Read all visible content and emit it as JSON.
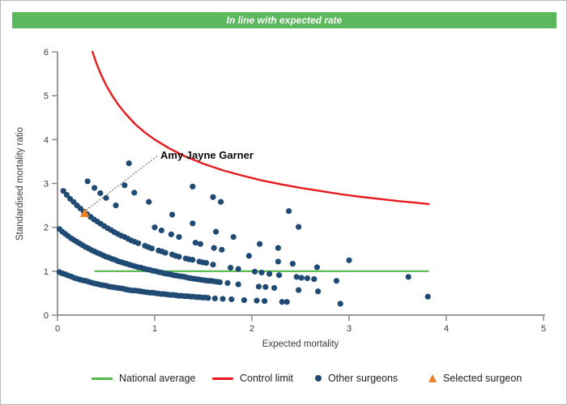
{
  "banner": {
    "text": "In line with expected rate",
    "bg_color": "#5CB85C",
    "text_color": "#FFFFFF"
  },
  "chart_data": {
    "type": "scatter",
    "title": "In line with expected rate",
    "xlabel": "Expected mortality",
    "ylabel": "Standardised mortality ratio",
    "xlim": [
      0,
      5
    ],
    "ylim": [
      0,
      6
    ],
    "x_ticks": [
      0,
      1,
      2,
      3,
      4,
      5
    ],
    "y_ticks": [
      0,
      1,
      2,
      3,
      4,
      5,
      6
    ],
    "grid": false,
    "legend_position": "bottom",
    "axis_color": "#8C8C8C",
    "national_average": {
      "label": "National average",
      "color": "#53B848",
      "y": 1.0,
      "x_start": 0.38,
      "x_end": 3.82
    },
    "control_limit": {
      "label": "Control limit",
      "color": "#E8191C",
      "points": [
        [
          0.36,
          6.0
        ],
        [
          0.4,
          5.74
        ],
        [
          0.45,
          5.47
        ],
        [
          0.5,
          5.24
        ],
        [
          0.56,
          5.01
        ],
        [
          0.63,
          4.78
        ],
        [
          0.7,
          4.59
        ],
        [
          0.8,
          4.35
        ],
        [
          0.9,
          4.16
        ],
        [
          1.0,
          4.0
        ],
        [
          1.15,
          3.8
        ],
        [
          1.3,
          3.63
        ],
        [
          1.5,
          3.45
        ],
        [
          1.7,
          3.3
        ],
        [
          1.9,
          3.18
        ],
        [
          2.1,
          3.07
        ],
        [
          2.3,
          2.98
        ],
        [
          2.5,
          2.9
        ],
        [
          2.7,
          2.83
        ],
        [
          2.9,
          2.76
        ],
        [
          3.1,
          2.7
        ],
        [
          3.3,
          2.65
        ],
        [
          3.5,
          2.6
        ],
        [
          3.65,
          2.57
        ],
        [
          3.82,
          2.53
        ]
      ]
    },
    "other_surgeons": {
      "label": "Other surgeons",
      "color": "#1F4A74",
      "marker": "circle",
      "bands": [
        {
          "deaths": 1,
          "points": [
            [
              0.02,
              0.98
            ],
            [
              0.05,
              0.95
            ],
            [
              0.08,
              0.93
            ],
            [
              0.11,
              0.9
            ],
            [
              0.14,
              0.88
            ],
            [
              0.17,
              0.85
            ],
            [
              0.2,
              0.83
            ],
            [
              0.23,
              0.81
            ],
            [
              0.26,
              0.79
            ],
            [
              0.29,
              0.78
            ],
            [
              0.32,
              0.76
            ],
            [
              0.35,
              0.74
            ],
            [
              0.38,
              0.72
            ],
            [
              0.41,
              0.71
            ],
            [
              0.44,
              0.69
            ],
            [
              0.47,
              0.68
            ],
            [
              0.5,
              0.67
            ],
            [
              0.53,
              0.65
            ],
            [
              0.56,
              0.64
            ],
            [
              0.59,
              0.63
            ],
            [
              0.62,
              0.62
            ],
            [
              0.65,
              0.61
            ],
            [
              0.68,
              0.6
            ],
            [
              0.71,
              0.58
            ],
            [
              0.74,
              0.57
            ],
            [
              0.77,
              0.56
            ],
            [
              0.8,
              0.56
            ],
            [
              0.83,
              0.55
            ],
            [
              0.86,
              0.54
            ],
            [
              0.89,
              0.53
            ],
            [
              0.92,
              0.52
            ],
            [
              0.95,
              0.51
            ],
            [
              0.98,
              0.51
            ],
            [
              1.01,
              0.5
            ],
            [
              1.04,
              0.49
            ],
            [
              1.07,
              0.48
            ],
            [
              1.1,
              0.48
            ],
            [
              1.13,
              0.47
            ],
            [
              1.16,
              0.46
            ],
            [
              1.19,
              0.46
            ],
            [
              1.22,
              0.45
            ],
            [
              1.25,
              0.44
            ],
            [
              1.28,
              0.44
            ],
            [
              1.31,
              0.43
            ],
            [
              1.34,
              0.43
            ],
            [
              1.37,
              0.42
            ],
            [
              1.4,
              0.42
            ],
            [
              1.43,
              0.41
            ],
            [
              1.46,
              0.41
            ],
            [
              1.49,
              0.4
            ],
            [
              1.52,
              0.4
            ],
            [
              1.55,
              0.39
            ],
            [
              1.62,
              0.38
            ],
            [
              1.7,
              0.37
            ],
            [
              1.79,
              0.36
            ],
            [
              1.92,
              0.34
            ],
            [
              2.05,
              0.33
            ],
            [
              2.13,
              0.32
            ],
            [
              2.31,
              0.3
            ],
            [
              2.36,
              0.3
            ],
            [
              2.91,
              0.26
            ]
          ]
        },
        {
          "deaths": 2,
          "points": [
            [
              0.02,
              1.96
            ],
            [
              0.05,
              1.9
            ],
            [
              0.08,
              1.85
            ],
            [
              0.11,
              1.8
            ],
            [
              0.14,
              1.75
            ],
            [
              0.17,
              1.71
            ],
            [
              0.2,
              1.67
            ],
            [
              0.23,
              1.63
            ],
            [
              0.26,
              1.59
            ],
            [
              0.29,
              1.55
            ],
            [
              0.32,
              1.52
            ],
            [
              0.35,
              1.48
            ],
            [
              0.38,
              1.45
            ],
            [
              0.41,
              1.42
            ],
            [
              0.44,
              1.39
            ],
            [
              0.47,
              1.36
            ],
            [
              0.5,
              1.33
            ],
            [
              0.53,
              1.31
            ],
            [
              0.56,
              1.28
            ],
            [
              0.59,
              1.26
            ],
            [
              0.62,
              1.23
            ],
            [
              0.65,
              1.21
            ],
            [
              0.68,
              1.19
            ],
            [
              0.71,
              1.17
            ],
            [
              0.74,
              1.15
            ],
            [
              0.77,
              1.13
            ],
            [
              0.8,
              1.11
            ],
            [
              0.83,
              1.09
            ],
            [
              0.86,
              1.08
            ],
            [
              0.89,
              1.06
            ],
            [
              0.92,
              1.04
            ],
            [
              0.95,
              1.03
            ],
            [
              0.98,
              1.01
            ],
            [
              1.01,
              1.0
            ],
            [
              1.04,
              0.98
            ],
            [
              1.07,
              0.97
            ],
            [
              1.1,
              0.95
            ],
            [
              1.13,
              0.94
            ],
            [
              1.16,
              0.93
            ],
            [
              1.19,
              0.91
            ],
            [
              1.22,
              0.9
            ],
            [
              1.25,
              0.89
            ],
            [
              1.28,
              0.88
            ],
            [
              1.31,
              0.87
            ],
            [
              1.34,
              0.85
            ],
            [
              1.37,
              0.84
            ],
            [
              1.4,
              0.83
            ],
            [
              1.43,
              0.82
            ],
            [
              1.46,
              0.81
            ],
            [
              1.49,
              0.8
            ],
            [
              1.52,
              0.79
            ],
            [
              1.55,
              0.78
            ],
            [
              1.58,
              0.78
            ],
            [
              1.61,
              0.77
            ],
            [
              1.64,
              0.76
            ],
            [
              1.67,
              0.75
            ],
            [
              1.75,
              0.73
            ],
            [
              1.86,
              0.7
            ],
            [
              2.07,
              0.65
            ],
            [
              2.14,
              0.64
            ],
            [
              2.23,
              0.62
            ],
            [
              2.48,
              0.57
            ],
            [
              2.68,
              0.54
            ],
            [
              3.81,
              0.42
            ]
          ]
        },
        {
          "deaths": 3,
          "points": [
            [
              0.06,
              2.83
            ],
            [
              0.095,
              2.74
            ],
            [
              0.13,
              2.65
            ],
            [
              0.165,
              2.58
            ],
            [
              0.2,
              2.5
            ],
            [
              0.235,
              2.43
            ],
            [
              0.27,
              2.36
            ],
            [
              0.305,
              2.3
            ],
            [
              0.34,
              2.24
            ],
            [
              0.375,
              2.18
            ],
            [
              0.41,
              2.13
            ],
            [
              0.445,
              2.08
            ],
            [
              0.48,
              2.03
            ],
            [
              0.515,
              1.98
            ],
            [
              0.55,
              1.94
            ],
            [
              0.585,
              1.89
            ],
            [
              0.62,
              1.85
            ],
            [
              0.655,
              1.81
            ],
            [
              0.69,
              1.78
            ],
            [
              0.725,
              1.74
            ],
            [
              0.76,
              1.7
            ],
            [
              0.795,
              1.67
            ],
            [
              0.83,
              1.64
            ],
            [
              0.9,
              1.58
            ],
            [
              0.935,
              1.55
            ],
            [
              0.97,
              1.52
            ],
            [
              1.04,
              1.47
            ],
            [
              1.075,
              1.45
            ],
            [
              1.11,
              1.42
            ],
            [
              1.18,
              1.38
            ],
            [
              1.215,
              1.35
            ],
            [
              1.25,
              1.33
            ],
            [
              1.32,
              1.29
            ],
            [
              1.355,
              1.27
            ],
            [
              1.39,
              1.26
            ],
            [
              1.46,
              1.22
            ],
            [
              1.495,
              1.2
            ],
            [
              1.53,
              1.19
            ],
            [
              1.6,
              1.15
            ],
            [
              1.78,
              1.08
            ],
            [
              1.86,
              1.05
            ],
            [
              2.03,
              0.99
            ],
            [
              2.1,
              0.97
            ],
            [
              2.18,
              0.94
            ],
            [
              2.28,
              0.91
            ],
            [
              2.46,
              0.87
            ],
            [
              2.51,
              0.85
            ],
            [
              2.57,
              0.84
            ],
            [
              2.64,
              0.82
            ],
            [
              2.87,
              0.78
            ]
          ]
        },
        {
          "deaths": 4,
          "points": [
            [
              0.31,
              3.05
            ],
            [
              0.38,
              2.9
            ],
            [
              0.44,
              2.78
            ],
            [
              0.5,
              2.67
            ],
            [
              0.6,
              2.5
            ],
            [
              1.0,
              2.0
            ],
            [
              1.07,
              1.93
            ],
            [
              1.17,
              1.84
            ],
            [
              1.25,
              1.78
            ],
            [
              1.42,
              1.65
            ],
            [
              1.47,
              1.62
            ],
            [
              1.61,
              1.53
            ],
            [
              1.69,
              1.49
            ],
            [
              1.97,
              1.35
            ],
            [
              2.27,
              1.22
            ],
            [
              2.42,
              1.17
            ],
            [
              2.67,
              1.09
            ],
            [
              3.61,
              0.87
            ]
          ]
        },
        {
          "deaths": 5,
          "points": [
            [
              0.69,
              2.96
            ],
            [
              0.79,
              2.79
            ],
            [
              0.94,
              2.58
            ],
            [
              1.18,
              2.29
            ],
            [
              1.39,
              2.09
            ],
            [
              1.63,
              1.9
            ],
            [
              1.81,
              1.78
            ],
            [
              2.08,
              1.62
            ],
            [
              2.27,
              1.53
            ],
            [
              3.0,
              1.25
            ]
          ]
        },
        {
          "deaths": 6,
          "points": [
            [
              0.735,
              3.46
            ]
          ]
        },
        {
          "deaths": 7,
          "points": [
            [
              1.39,
              2.93
            ],
            [
              1.6,
              2.69
            ],
            [
              1.68,
              2.58
            ],
            [
              2.48,
              2.01
            ]
          ]
        },
        {
          "deaths": 8,
          "points": [
            [
              2.38,
              2.37
            ]
          ]
        }
      ]
    },
    "selected_surgeon": {
      "label": "Selected surgeon",
      "name": "Amy Jayne Garner",
      "color": "#EE8125",
      "marker": "triangle",
      "x": 0.28,
      "y": 2.32
    }
  }
}
